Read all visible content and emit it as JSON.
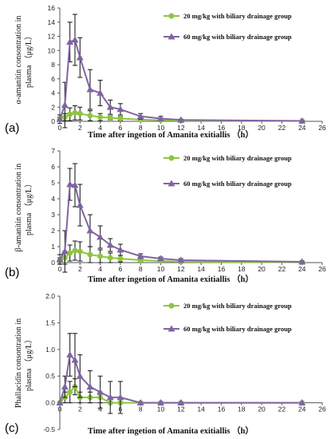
{
  "colors": {
    "low": "#8DC63F",
    "high": "#8064A2",
    "error": "#222222",
    "axis": "#555555"
  },
  "chart_data": [
    {
      "type": "line",
      "panel_label": "(a)",
      "xlabel": "Time after ingetion of Amanita exitiallis （h）",
      "ylabel": [
        "α-amanitin consontration in",
        "plasma （μg/L）"
      ],
      "xlim": [
        0,
        26
      ],
      "ylim": [
        0,
        16
      ],
      "xticks": [
        0,
        2,
        4,
        6,
        8,
        10,
        12,
        14,
        16,
        18,
        20,
        22,
        24,
        26
      ],
      "yticks": [
        0,
        2,
        4,
        6,
        8,
        10,
        12,
        14,
        16
      ],
      "ytick_labels": [
        "0",
        "2",
        "4",
        "6",
        "8",
        "10",
        "12",
        "14",
        "16"
      ],
      "legend_position": "top-right",
      "x": [
        0,
        0.5,
        1,
        1.5,
        2,
        3,
        4,
        5,
        6,
        8,
        10,
        12,
        24
      ],
      "series": [
        {
          "name": "20 mg/kg with biliary drainage group",
          "color_key": "low",
          "marker": "circle",
          "values": [
            0.3,
            0.6,
            1.0,
            1.2,
            1.1,
            0.8,
            0.6,
            0.5,
            0.4,
            0.25,
            0.15,
            0.1,
            0.05
          ],
          "errors": [
            0.3,
            0.5,
            0.9,
            1.0,
            0.9,
            0.7,
            0.5,
            0.3,
            0.3,
            0.2,
            0.1,
            0.1,
            0.05
          ]
        },
        {
          "name": "60 mg/kg with biliary drainage group",
          "color_key": "high",
          "marker": "triangle",
          "values": [
            0.3,
            2.3,
            11.2,
            11.5,
            9.0,
            4.5,
            4.0,
            2.0,
            1.7,
            0.7,
            0.4,
            0.2,
            0.05
          ],
          "errors": [
            0.6,
            3.2,
            2.8,
            3.6,
            2.8,
            2.8,
            1.8,
            1.0,
            0.8,
            0.4,
            0.3,
            0.1,
            0.05
          ]
        }
      ]
    },
    {
      "type": "line",
      "panel_label": "(b)",
      "xlabel": "Time after ingetion of Amanita exitiallis （h）",
      "ylabel": [
        "β-amanitin consontration in",
        "plasma （μg/L）"
      ],
      "xlim": [
        0,
        26
      ],
      "ylim": [
        0,
        7
      ],
      "xticks": [
        0,
        2,
        4,
        6,
        8,
        10,
        12,
        14,
        16,
        18,
        20,
        22,
        24,
        26
      ],
      "yticks": [
        0,
        1,
        2,
        3,
        4,
        5,
        6,
        7
      ],
      "ytick_labels": [
        "0",
        "1",
        "2",
        "3",
        "4",
        "5",
        "6",
        "7"
      ],
      "legend_position": "top-right",
      "x": [
        0,
        0.5,
        1,
        1.5,
        2,
        3,
        4,
        5,
        6,
        8,
        10,
        12,
        24
      ],
      "series": [
        {
          "name": "20 mg/kg with biliary drainage group",
          "color_key": "low",
          "marker": "circle",
          "values": [
            0.1,
            0.3,
            0.6,
            0.75,
            0.7,
            0.5,
            0.4,
            0.3,
            0.25,
            0.15,
            0.1,
            0.05,
            0.02
          ],
          "errors": [
            0.2,
            0.4,
            0.5,
            0.6,
            0.6,
            0.5,
            0.4,
            0.3,
            0.2,
            0.1,
            0.1,
            0.05,
            0.02
          ]
        },
        {
          "name": "60 mg/kg with biliary drainage group",
          "color_key": "high",
          "marker": "triangle",
          "values": [
            0.2,
            0.7,
            4.9,
            4.85,
            3.6,
            2.0,
            1.6,
            1.1,
            0.8,
            0.4,
            0.25,
            0.15,
            0.05
          ],
          "errors": [
            0.3,
            1.3,
            1.0,
            1.35,
            1.3,
            1.0,
            0.7,
            0.4,
            0.35,
            0.15,
            0.1,
            0.1,
            0.05
          ]
        }
      ]
    },
    {
      "type": "line",
      "panel_label": "(c)",
      "xlabel": "Time after ingetion of Amanita exitiallis （h）",
      "ylabel": [
        "Phallacidin consontration in",
        "plasma （μg/L）"
      ],
      "xlim": [
        0,
        26
      ],
      "ylim": [
        -0.5,
        2.0
      ],
      "xticks": [
        0,
        2,
        4,
        6,
        8,
        10,
        12,
        14,
        16,
        18,
        20,
        22,
        24,
        26
      ],
      "yticks": [
        -0.5,
        0,
        0.5,
        1.0,
        1.5,
        2.0
      ],
      "ytick_labels": [
        "-0.5",
        "0.0",
        "0.5",
        "1.0",
        "1.5",
        "2.0"
      ],
      "legend_position": "top-right",
      "x": [
        0,
        0.5,
        1,
        1.5,
        2,
        3,
        4,
        5,
        6,
        8,
        10,
        12,
        24
      ],
      "series": [
        {
          "name": "20 mg/kg with biliary drainage group",
          "color_key": "low",
          "marker": "circle",
          "values": [
            0,
            0.1,
            0.2,
            0.3,
            0.1,
            0.1,
            0.1,
            0,
            0,
            0,
            0,
            0,
            0
          ],
          "errors": [
            0,
            0.1,
            0.2,
            0.15,
            0.1,
            0.1,
            0.1,
            0,
            0,
            0,
            0,
            0,
            0
          ]
        },
        {
          "name": "60 mg/kg with biliary drainage group",
          "color_key": "high",
          "marker": "triangle",
          "values": [
            0,
            0.3,
            0.9,
            0.8,
            0.5,
            0.3,
            0.2,
            0.1,
            0.1,
            0,
            0,
            0,
            0
          ],
          "errors": [
            0,
            0.2,
            0.4,
            0.5,
            0.4,
            0.3,
            0.3,
            0.3,
            0.3,
            0,
            0,
            0,
            0
          ]
        }
      ]
    }
  ]
}
